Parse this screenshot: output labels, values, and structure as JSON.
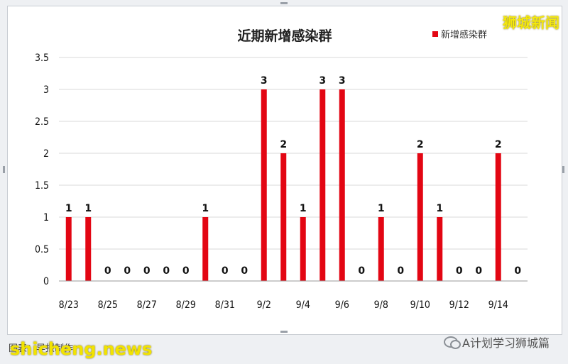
{
  "brand": "狮城新闻",
  "watermark": "shicheng.news",
  "footer_left": "图表：早报制作",
  "footer_right": "A计划学习狮城篇",
  "colors": {
    "bar": "#e30613",
    "grid": "#d9d9d9"
  },
  "chart_data": {
    "type": "bar",
    "title": "近期新增感染群",
    "legend": "新增感染群",
    "legend_position": "top-right",
    "grid": true,
    "ylim": [
      0,
      3.5
    ],
    "yticks": [
      "0",
      "0.5",
      "1",
      "1.5",
      "2",
      "2.5",
      "3",
      "3.5"
    ],
    "categories": [
      "8/23",
      "8/24",
      "8/25",
      "8/26",
      "8/27",
      "8/28",
      "8/29",
      "8/30",
      "8/31",
      "9/1",
      "9/2",
      "9/3",
      "9/4",
      "9/5",
      "9/6",
      "9/7",
      "9/8",
      "9/9",
      "9/10",
      "9/11",
      "9/12",
      "9/13",
      "9/14",
      "9/15"
    ],
    "tick_labels": [
      "8/23",
      "8/25",
      "8/27",
      "8/29",
      "8/31",
      "9/2",
      "9/4",
      "9/6",
      "9/8",
      "9/10",
      "9/12",
      "9/14"
    ],
    "values": [
      1,
      1,
      0,
      0,
      0,
      0,
      0,
      1,
      0,
      0,
      3,
      2,
      1,
      3,
      3,
      0,
      1,
      0,
      2,
      1,
      0,
      0,
      2,
      0
    ]
  }
}
